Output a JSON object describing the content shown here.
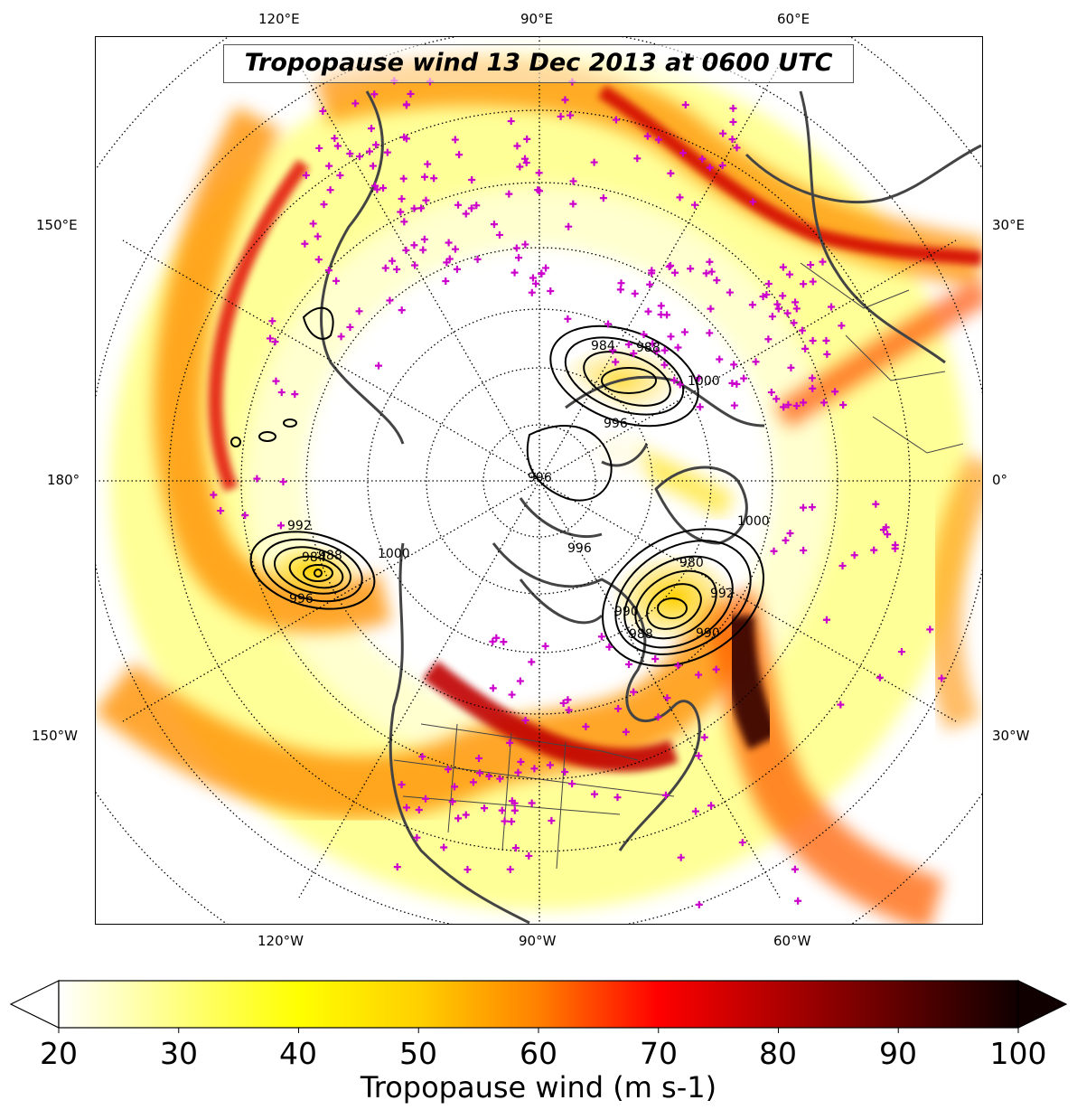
{
  "title": "Tropopause wind 13 Dec 2013 at 0600 UTC",
  "longitude_labels": {
    "top": [
      "120°E",
      "90°E",
      "60°E"
    ],
    "bottom": [
      "120°W",
      "90°W",
      "60°W"
    ],
    "left": [
      "150°E",
      "180°",
      "150°W"
    ],
    "right": [
      "30°E",
      "0°",
      "30°W"
    ]
  },
  "contour_labels": [
    "984",
    "988",
    "996",
    "996",
    "992",
    "988",
    "984",
    "990",
    "1000",
    "996",
    "988",
    "992",
    "996",
    "1000",
    "980",
    "1000",
    "990"
  ],
  "colorbar": {
    "label": "Tropopause wind (m s-1)",
    "ticks": [
      "20",
      "30",
      "40",
      "50",
      "60",
      "70",
      "80",
      "90",
      "100"
    ],
    "min": 20,
    "max": 100,
    "colors": [
      "#ffffff",
      "#ffff80",
      "#ffff00",
      "#ffd000",
      "#ff8000",
      "#ff0000",
      "#b00000",
      "#600000",
      "#100000"
    ]
  },
  "colors": {
    "observation_marker": "#cc00cc",
    "coastline": "#444444",
    "contour": "#000000"
  }
}
